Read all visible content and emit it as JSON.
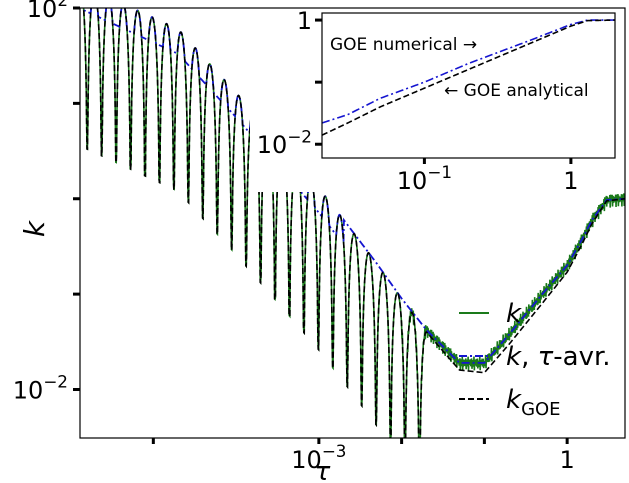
{
  "chart_data": [
    {
      "type": "line",
      "xscale": "log",
      "yscale": "log",
      "xlabel": "τ",
      "ylabel": "k",
      "xlim": [
        1.3e-06,
        5.0
      ],
      "ylim": [
        0.0031,
        100
      ],
      "xticks": [
        {
          "value": 0.001,
          "label": "10^-3"
        },
        {
          "value": 1,
          "label": "1"
        }
      ],
      "xminorticks": [
        1e-05,
        0.01,
        0.1
      ],
      "yticks": [
        {
          "value": 100,
          "label": "10^2"
        },
        {
          "value": 0.01,
          "label": "10^-2"
        }
      ],
      "yminorticks": [
        10,
        1,
        0.1
      ],
      "legend": {
        "position": "lower-right",
        "entries": [
          {
            "label_main": "k",
            "label_sub": "",
            "label_rest": "",
            "color": "#1a7a1a",
            "style": "solid"
          },
          {
            "label_main": "k",
            "label_sub": "",
            "label_rest": ", τ-avr.",
            "color": "#1515d0",
            "style": "dashdot"
          },
          {
            "label_main": "k",
            "label_sub": "GOE",
            "label_rest": "",
            "color": "#000000",
            "style": "dashed"
          }
        ]
      },
      "series": [
        {
          "key": "k_goe",
          "x": [
            1e-06,
            2e-05,
            5e-05,
            0.0001,
            0.0002,
            0.0005,
            0.001,
            0.002,
            0.005,
            0.01,
            0.02,
            0.05,
            0.1,
            0.2,
            0.5,
            1.0,
            1.5,
            2.0,
            3.0,
            5.0
          ],
          "y": [
            200,
            60,
            25,
            13,
            6.5,
            2.6,
            1.3,
            0.6,
            0.21,
            0.09,
            0.04,
            0.016,
            0.015,
            0.03,
            0.08,
            0.17,
            0.33,
            0.55,
            0.95,
            1.0
          ]
        },
        {
          "key": "k_tau_avr",
          "x": [
            1e-06,
            2e-05,
            5e-05,
            0.0001,
            0.0002,
            0.0005,
            0.001,
            0.002,
            0.005,
            0.01,
            0.02,
            0.05,
            0.1,
            0.2,
            0.5,
            1.0,
            1.5,
            2.0,
            3.0,
            5.0
          ],
          "y": [
            200,
            60,
            25,
            13,
            6.5,
            2.6,
            1.3,
            0.6,
            0.21,
            0.09,
            0.042,
            0.019,
            0.019,
            0.038,
            0.1,
            0.2,
            0.37,
            0.6,
            0.97,
            1.0
          ]
        }
      ]
    },
    {
      "type": "line",
      "inset": true,
      "xscale": "log",
      "yscale": "log",
      "xlim": [
        0.02,
        2.0
      ],
      "ylim": [
        0.006,
        1.3
      ],
      "xticks": [
        {
          "value": 0.1,
          "label": "10^-1"
        },
        {
          "value": 1,
          "label": "1"
        }
      ],
      "yticks": [
        {
          "value": 1,
          "label": "1"
        },
        {
          "value": 0.01,
          "label": "10^-2"
        }
      ],
      "yminorticks": [
        0.1
      ],
      "annotations": [
        {
          "text": "GOE numerical →"
        },
        {
          "text": "← GOE analytical"
        }
      ],
      "series": [
        {
          "key": "inset_numerical",
          "x": [
            0.02,
            0.03,
            0.05,
            0.1,
            0.2,
            0.5,
            1.0,
            1.3,
            2.0
          ],
          "y": [
            0.022,
            0.03,
            0.055,
            0.1,
            0.2,
            0.45,
            0.85,
            1.0,
            1.0
          ]
        },
        {
          "key": "inset_analytical",
          "x": [
            0.02,
            0.03,
            0.05,
            0.1,
            0.2,
            0.5,
            1.0,
            1.3,
            2.0
          ],
          "y": [
            0.014,
            0.022,
            0.04,
            0.08,
            0.16,
            0.4,
            0.8,
            0.98,
            1.0
          ]
        }
      ]
    }
  ]
}
